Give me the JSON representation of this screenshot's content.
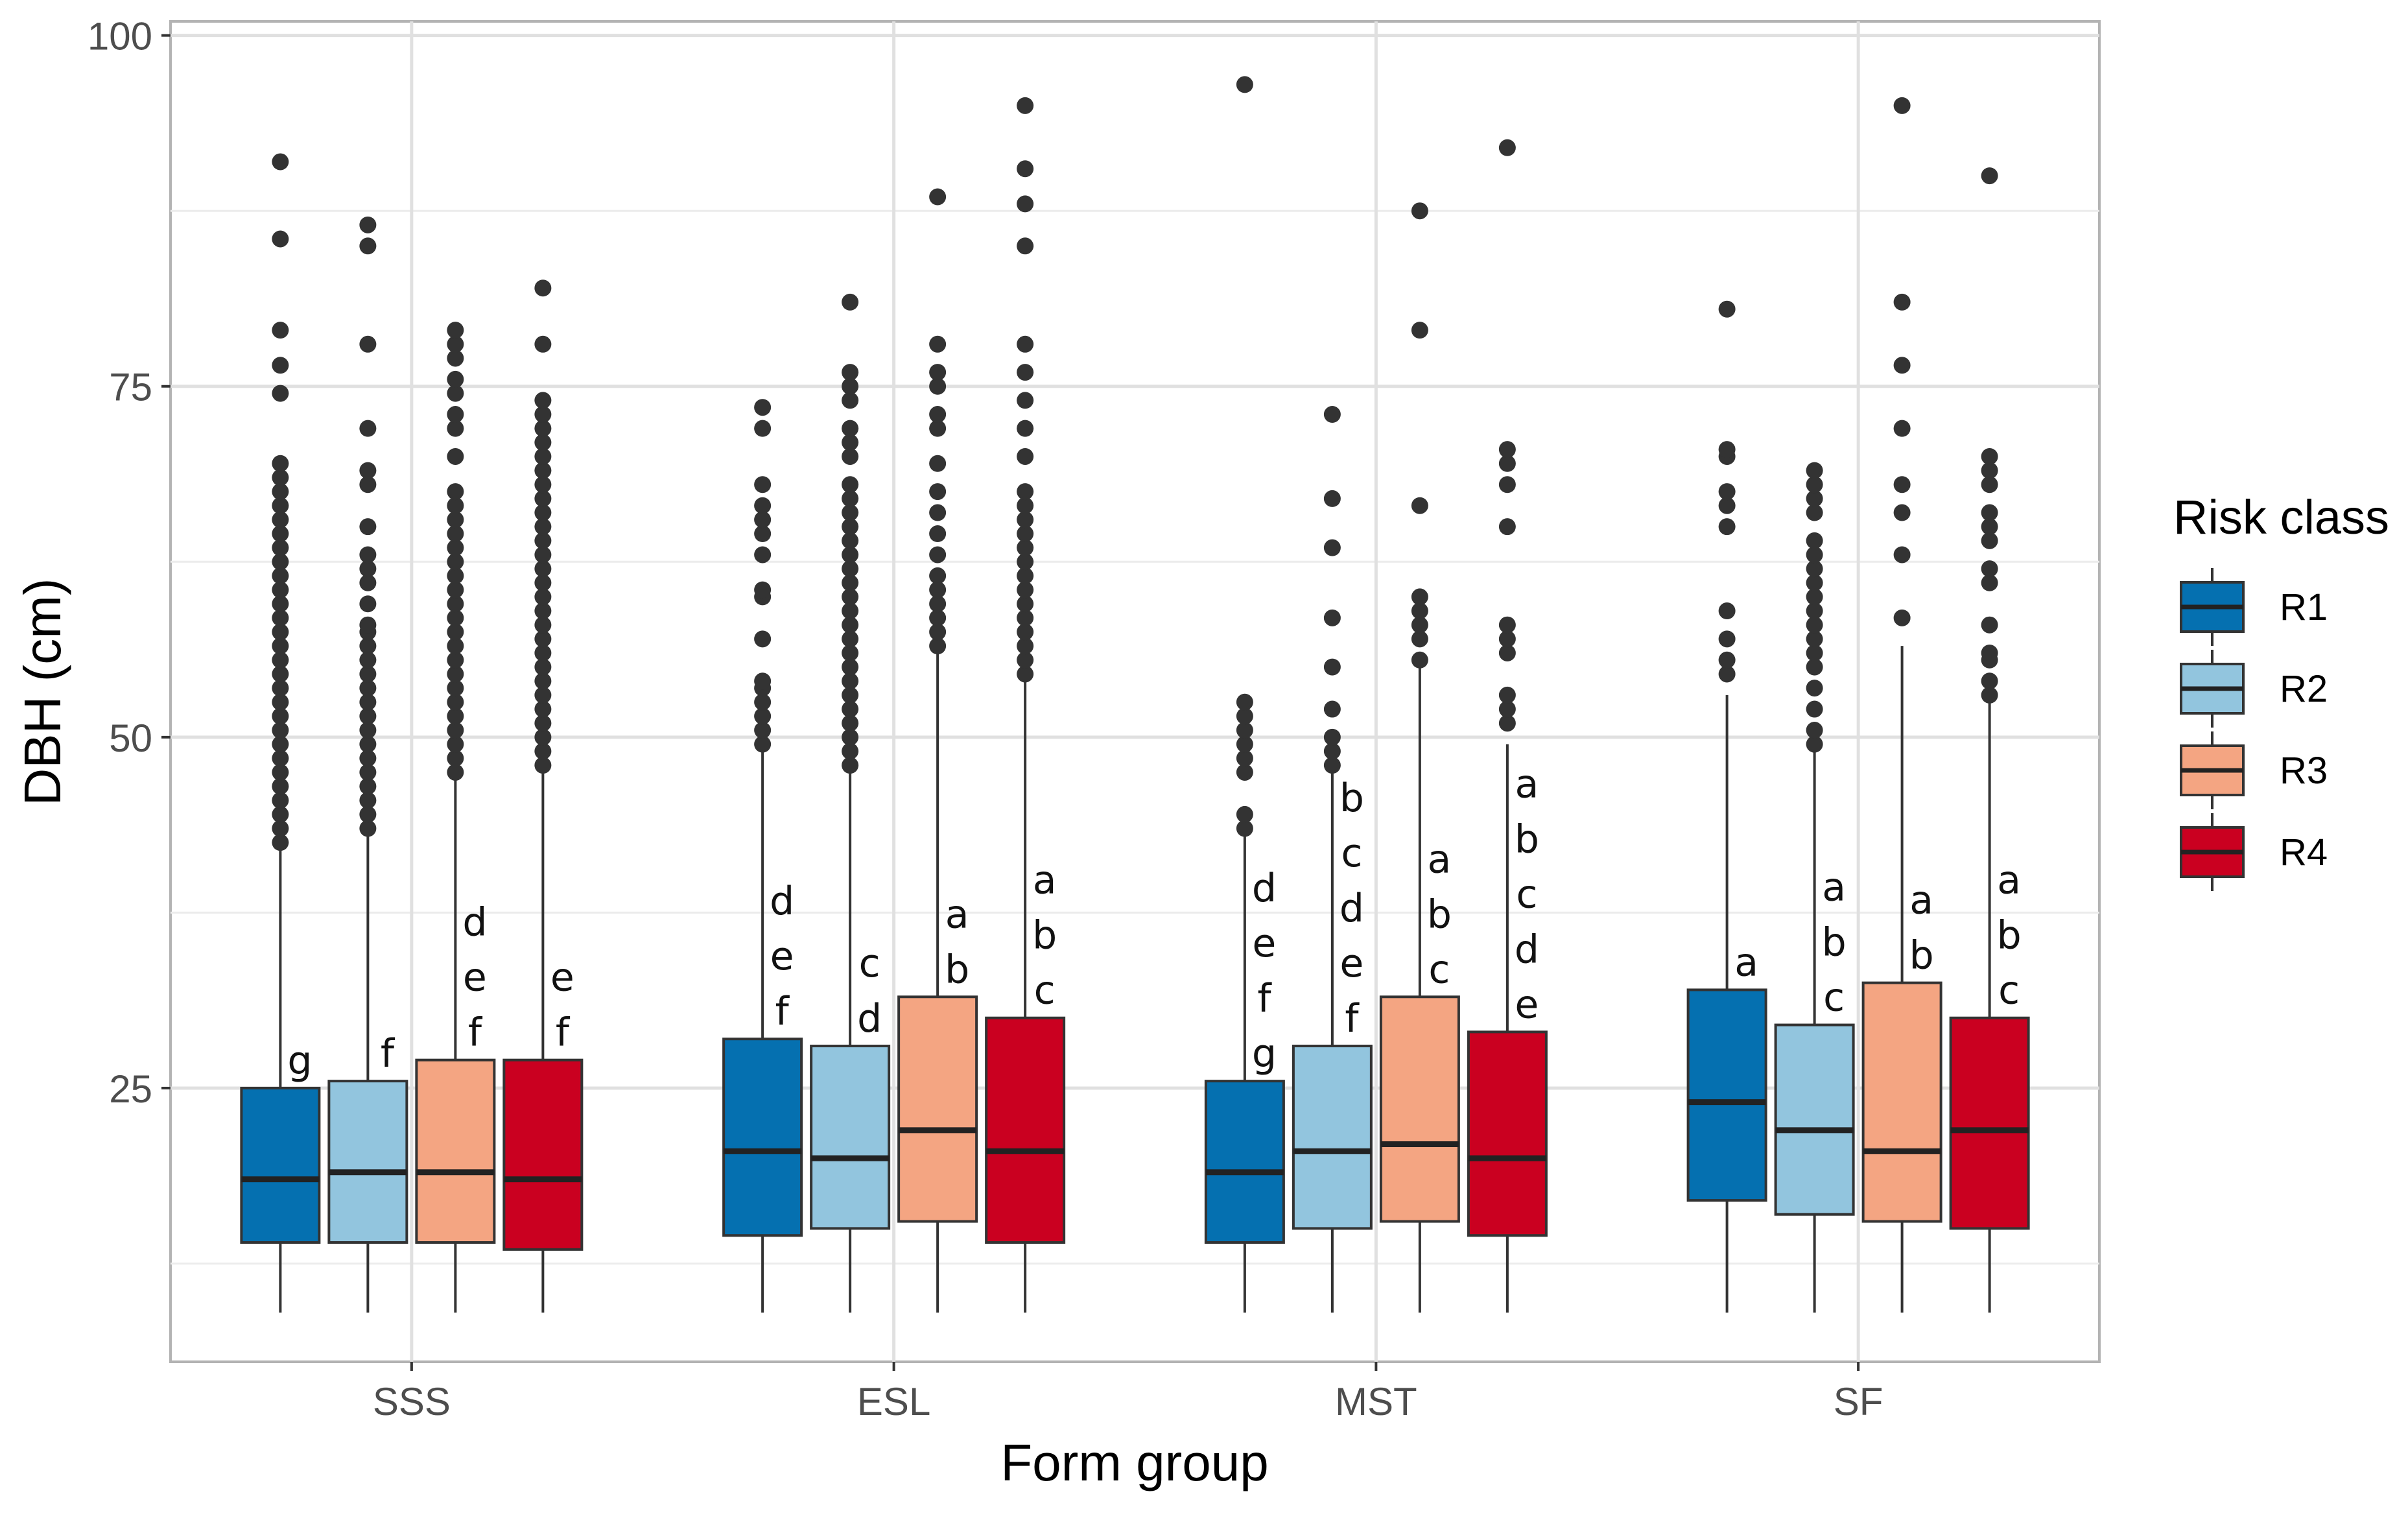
{
  "chart_data": {
    "type": "boxplot",
    "title": "",
    "xlabel": "Form group",
    "ylabel": "DBH (cm)",
    "ylim": [
      5.5,
      101
    ],
    "yticks": [
      25,
      50,
      75,
      100
    ],
    "categories": [
      "SSS",
      "ESL",
      "MST",
      "SF"
    ],
    "legend": {
      "title": "Risk class",
      "position": "right",
      "entries": [
        {
          "label": "R1",
          "color": "#0570b0"
        },
        {
          "label": "R2",
          "color": "#92c5de"
        },
        {
          "label": "R3",
          "color": "#f4a582"
        },
        {
          "label": "R4",
          "color": "#ca0020"
        }
      ]
    },
    "groups": [
      {
        "category": "SSS",
        "boxes": [
          {
            "series": "R1",
            "whisker_low": 9,
            "q1": 14,
            "median": 18.5,
            "q3": 25,
            "whisker_high": 42,
            "letters": [
              "g"
            ],
            "outliers": [
              42.5,
              43.5,
              44.5,
              45.5,
              46.5,
              47.5,
              48.5,
              49.5,
              50.5,
              51.5,
              52.5,
              53.5,
              54.5,
              55.5,
              56.5,
              57.5,
              58.5,
              59.5,
              60.5,
              61.5,
              62.5,
              63.5,
              64.5,
              65.5,
              66.5,
              67.5,
              68.5,
              69.5,
              74.5,
              76.5,
              79,
              85.5,
              91
            ]
          },
          {
            "series": "R2",
            "whisker_low": 9,
            "q1": 14,
            "median": 19,
            "q3": 25.5,
            "whisker_high": 43,
            "letters": [
              "f"
            ],
            "outliers": [
              43.5,
              44.5,
              45.5,
              46.5,
              47.5,
              48.5,
              49.5,
              50.5,
              51.5,
              52.5,
              53.5,
              54.5,
              55.5,
              56.5,
              57.5,
              58,
              59.5,
              61,
              62,
              63,
              65,
              68,
              69,
              72,
              78,
              85,
              86.5
            ]
          },
          {
            "series": "R3",
            "whisker_low": 9,
            "q1": 14,
            "median": 19,
            "q3": 27,
            "whisker_high": 47,
            "letters": [
              "d",
              "e",
              "f"
            ],
            "outliers": [
              47.5,
              48.5,
              49.5,
              50.5,
              51.5,
              52.5,
              53.5,
              54.5,
              55.5,
              56.5,
              57.5,
              58.5,
              59.5,
              60.5,
              61.5,
              62.5,
              63.5,
              64.5,
              65.5,
              66.5,
              67.5,
              70,
              72,
              73,
              74.5,
              75.5,
              77,
              78,
              79
            ]
          },
          {
            "series": "R4",
            "whisker_low": 9,
            "q1": 13.5,
            "median": 18.5,
            "q3": 27,
            "whisker_high": 47.5,
            "letters": [
              "e",
              "f"
            ],
            "outliers": [
              48,
              49,
              50,
              51,
              52,
              53,
              54,
              55,
              56,
              57,
              58,
              59,
              60,
              61,
              62,
              63,
              64,
              65,
              66,
              67,
              68,
              69,
              70,
              71,
              72,
              73,
              74,
              78,
              82
            ]
          }
        ]
      },
      {
        "category": "ESL",
        "boxes": [
          {
            "series": "R1",
            "whisker_low": 9,
            "q1": 14.5,
            "median": 20.5,
            "q3": 28.5,
            "whisker_high": 49,
            "letters": [
              "d",
              "e",
              "f"
            ],
            "outliers": [
              49.5,
              50.5,
              51.5,
              52.5,
              53.5,
              54,
              57,
              60,
              60.5,
              63,
              64.5,
              65.5,
              66.5,
              68,
              72,
              73.5
            ]
          },
          {
            "series": "R2",
            "whisker_low": 9,
            "q1": 15,
            "median": 20,
            "q3": 28,
            "whisker_high": 47.5,
            "letters": [
              "c",
              "d"
            ],
            "outliers": [
              48,
              49,
              50,
              51,
              52,
              53,
              54,
              55,
              56,
              57,
              58,
              59,
              60,
              61,
              62,
              63,
              64,
              65,
              66,
              67,
              68,
              70,
              71,
              72,
              74,
              75,
              76,
              81
            ]
          },
          {
            "series": "R3",
            "whisker_low": 9,
            "q1": 15.5,
            "median": 22,
            "q3": 31.5,
            "whisker_high": 56,
            "letters": [
              "a",
              "b"
            ],
            "outliers": [
              56.5,
              57.5,
              58.5,
              59.5,
              60.5,
              61.5,
              63,
              64.5,
              66,
              67.5,
              69.5,
              72,
              73,
              75,
              76,
              78,
              88.5
            ]
          },
          {
            "series": "R4",
            "whisker_low": 9,
            "q1": 14,
            "median": 20.5,
            "q3": 30,
            "whisker_high": 54,
            "letters": [
              "a",
              "b",
              "c"
            ],
            "outliers": [
              54.5,
              55.5,
              56.5,
              57.5,
              58.5,
              59.5,
              60.5,
              61.5,
              62.5,
              63.5,
              64.5,
              65.5,
              66.5,
              67.5,
              70,
              72,
              74,
              76,
              78,
              85,
              88,
              90.5,
              95
            ]
          }
        ]
      },
      {
        "category": "MST",
        "boxes": [
          {
            "series": "R1",
            "whisker_low": 9,
            "q1": 14,
            "median": 19,
            "q3": 25.5,
            "whisker_high": 43,
            "letters": [
              "d",
              "e",
              "f",
              "g"
            ],
            "outliers": [
              43.5,
              44.5,
              47.5,
              48.5,
              49.5,
              50.5,
              51.5,
              52.5,
              96.5
            ]
          },
          {
            "series": "R2",
            "whisker_low": 9,
            "q1": 15,
            "median": 20.5,
            "q3": 28,
            "whisker_high": 47.5,
            "letters": [
              "b",
              "c",
              "d",
              "e",
              "f"
            ],
            "outliers": [
              48,
              49,
              50,
              52,
              55,
              58.5,
              63.5,
              67,
              73
            ]
          },
          {
            "series": "R3",
            "whisker_low": 9,
            "q1": 15.5,
            "median": 21,
            "q3": 31.5,
            "whisker_high": 55,
            "letters": [
              "a",
              "b",
              "c"
            ],
            "outliers": [
              55.5,
              57,
              58,
              59,
              60,
              66.5,
              79,
              87.5
            ]
          },
          {
            "series": "R4",
            "whisker_low": 9,
            "q1": 14.5,
            "median": 20,
            "q3": 29,
            "whisker_high": 49.5,
            "letters": [
              "a",
              "b",
              "c",
              "d",
              "e"
            ],
            "outliers": [
              51,
              52,
              53,
              56,
              57,
              58,
              65,
              68,
              69.5,
              70.5,
              92
            ]
          }
        ]
      },
      {
        "category": "SF",
        "boxes": [
          {
            "series": "R1",
            "whisker_low": 9,
            "q1": 17,
            "median": 24,
            "q3": 32,
            "whisker_high": 53,
            "letters": [
              "a"
            ],
            "outliers": [
              54.5,
              55.5,
              57,
              59,
              65,
              66.5,
              67.5,
              70,
              70.5,
              80.5
            ]
          },
          {
            "series": "R2",
            "whisker_low": 9,
            "q1": 16,
            "median": 22,
            "q3": 29.5,
            "whisker_high": 49,
            "letters": [
              "a",
              "b",
              "c"
            ],
            "outliers": [
              49.5,
              50.5,
              52,
              53.5,
              55,
              56,
              57,
              58,
              59,
              60,
              61,
              62,
              63,
              64,
              66,
              67,
              68,
              69
            ]
          },
          {
            "series": "R3",
            "whisker_low": 9,
            "q1": 15.5,
            "median": 20.5,
            "q3": 32.5,
            "whisker_high": 56.5,
            "letters": [
              "a",
              "b"
            ],
            "outliers": [
              58.5,
              63,
              66,
              68,
              72,
              76.5,
              81,
              95
            ]
          },
          {
            "series": "R4",
            "whisker_low": 9,
            "q1": 15,
            "median": 22,
            "q3": 30,
            "whisker_high": 52.5,
            "letters": [
              "a",
              "b",
              "c"
            ],
            "outliers": [
              53,
              54,
              55.5,
              56,
              58,
              61,
              62,
              64,
              65,
              66,
              68,
              69,
              70,
              90
            ]
          }
        ]
      }
    ]
  }
}
